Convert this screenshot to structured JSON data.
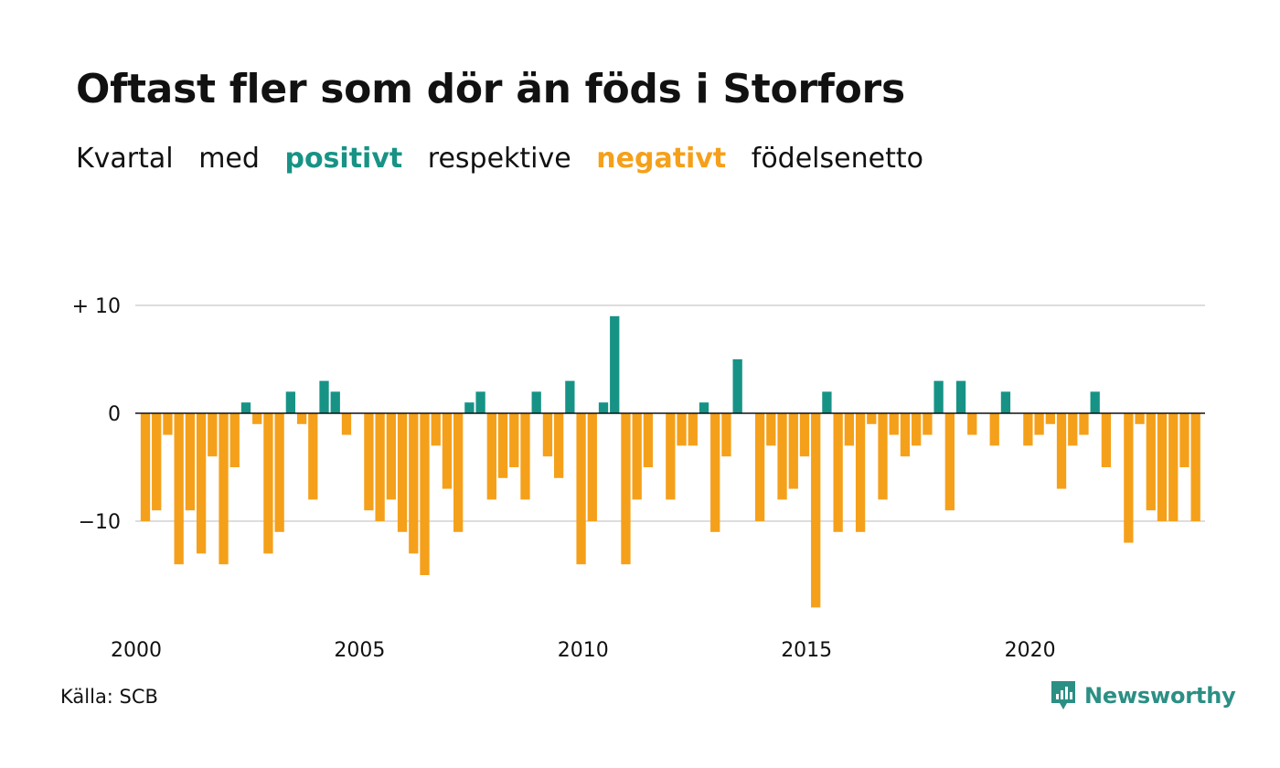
{
  "header": {
    "title": "Oftast fler som dör än föds i Storfors",
    "subtitle": {
      "part1": "Kvartal",
      "part2": "med",
      "positive": "positivt",
      "part3": "respektive",
      "negative": "negativt",
      "part4": "födelsenetto"
    }
  },
  "footer": {
    "source": "Källa: SCB",
    "brand": "Newsworthy",
    "brand_icon": "bar-chart-speech-icon"
  },
  "colors": {
    "positive": "#179386",
    "negative": "#f5a01a",
    "brand": "#2c8f84",
    "grid": "#dddddd",
    "axis": "#111111"
  },
  "chart_data": {
    "type": "bar",
    "xlabel": "",
    "ylabel": "",
    "ylim": [
      -18,
      10
    ],
    "y_ticks": [
      10,
      0,
      -10
    ],
    "y_tick_labels": [
      "+ 10",
      "0",
      "−10"
    ],
    "x_ticks": [
      "2000",
      "2005",
      "2010",
      "2015",
      "2020"
    ],
    "grid": true,
    "legend": "none",
    "start_year": 2000,
    "quarters_per_year": 4,
    "values": [
      -10,
      -9,
      -2,
      -14,
      -9,
      -13,
      -4,
      -14,
      -5,
      1,
      -1,
      -13,
      -11,
      2,
      -1,
      -8,
      3,
      2,
      -2,
      0,
      -9,
      -10,
      -8,
      -11,
      -13,
      -15,
      -3,
      -7,
      -11,
      1,
      2,
      -8,
      -6,
      -5,
      -8,
      2,
      -4,
      -6,
      3,
      -14,
      -10,
      1,
      9,
      -14,
      -8,
      -5,
      0,
      -8,
      -3,
      -3,
      1,
      -11,
      -4,
      5,
      0,
      -10,
      -3,
      -8,
      -7,
      -4,
      -18,
      2,
      -11,
      -3,
      -11,
      -1,
      -8,
      -2,
      -4,
      -3,
      -2,
      3,
      -9,
      3,
      -2,
      0,
      -3,
      2,
      0,
      -3,
      -2,
      -1,
      -7,
      -3,
      -2,
      2,
      -5,
      0,
      -12,
      -1,
      -9,
      -10,
      -10,
      -5,
      -10
    ]
  }
}
